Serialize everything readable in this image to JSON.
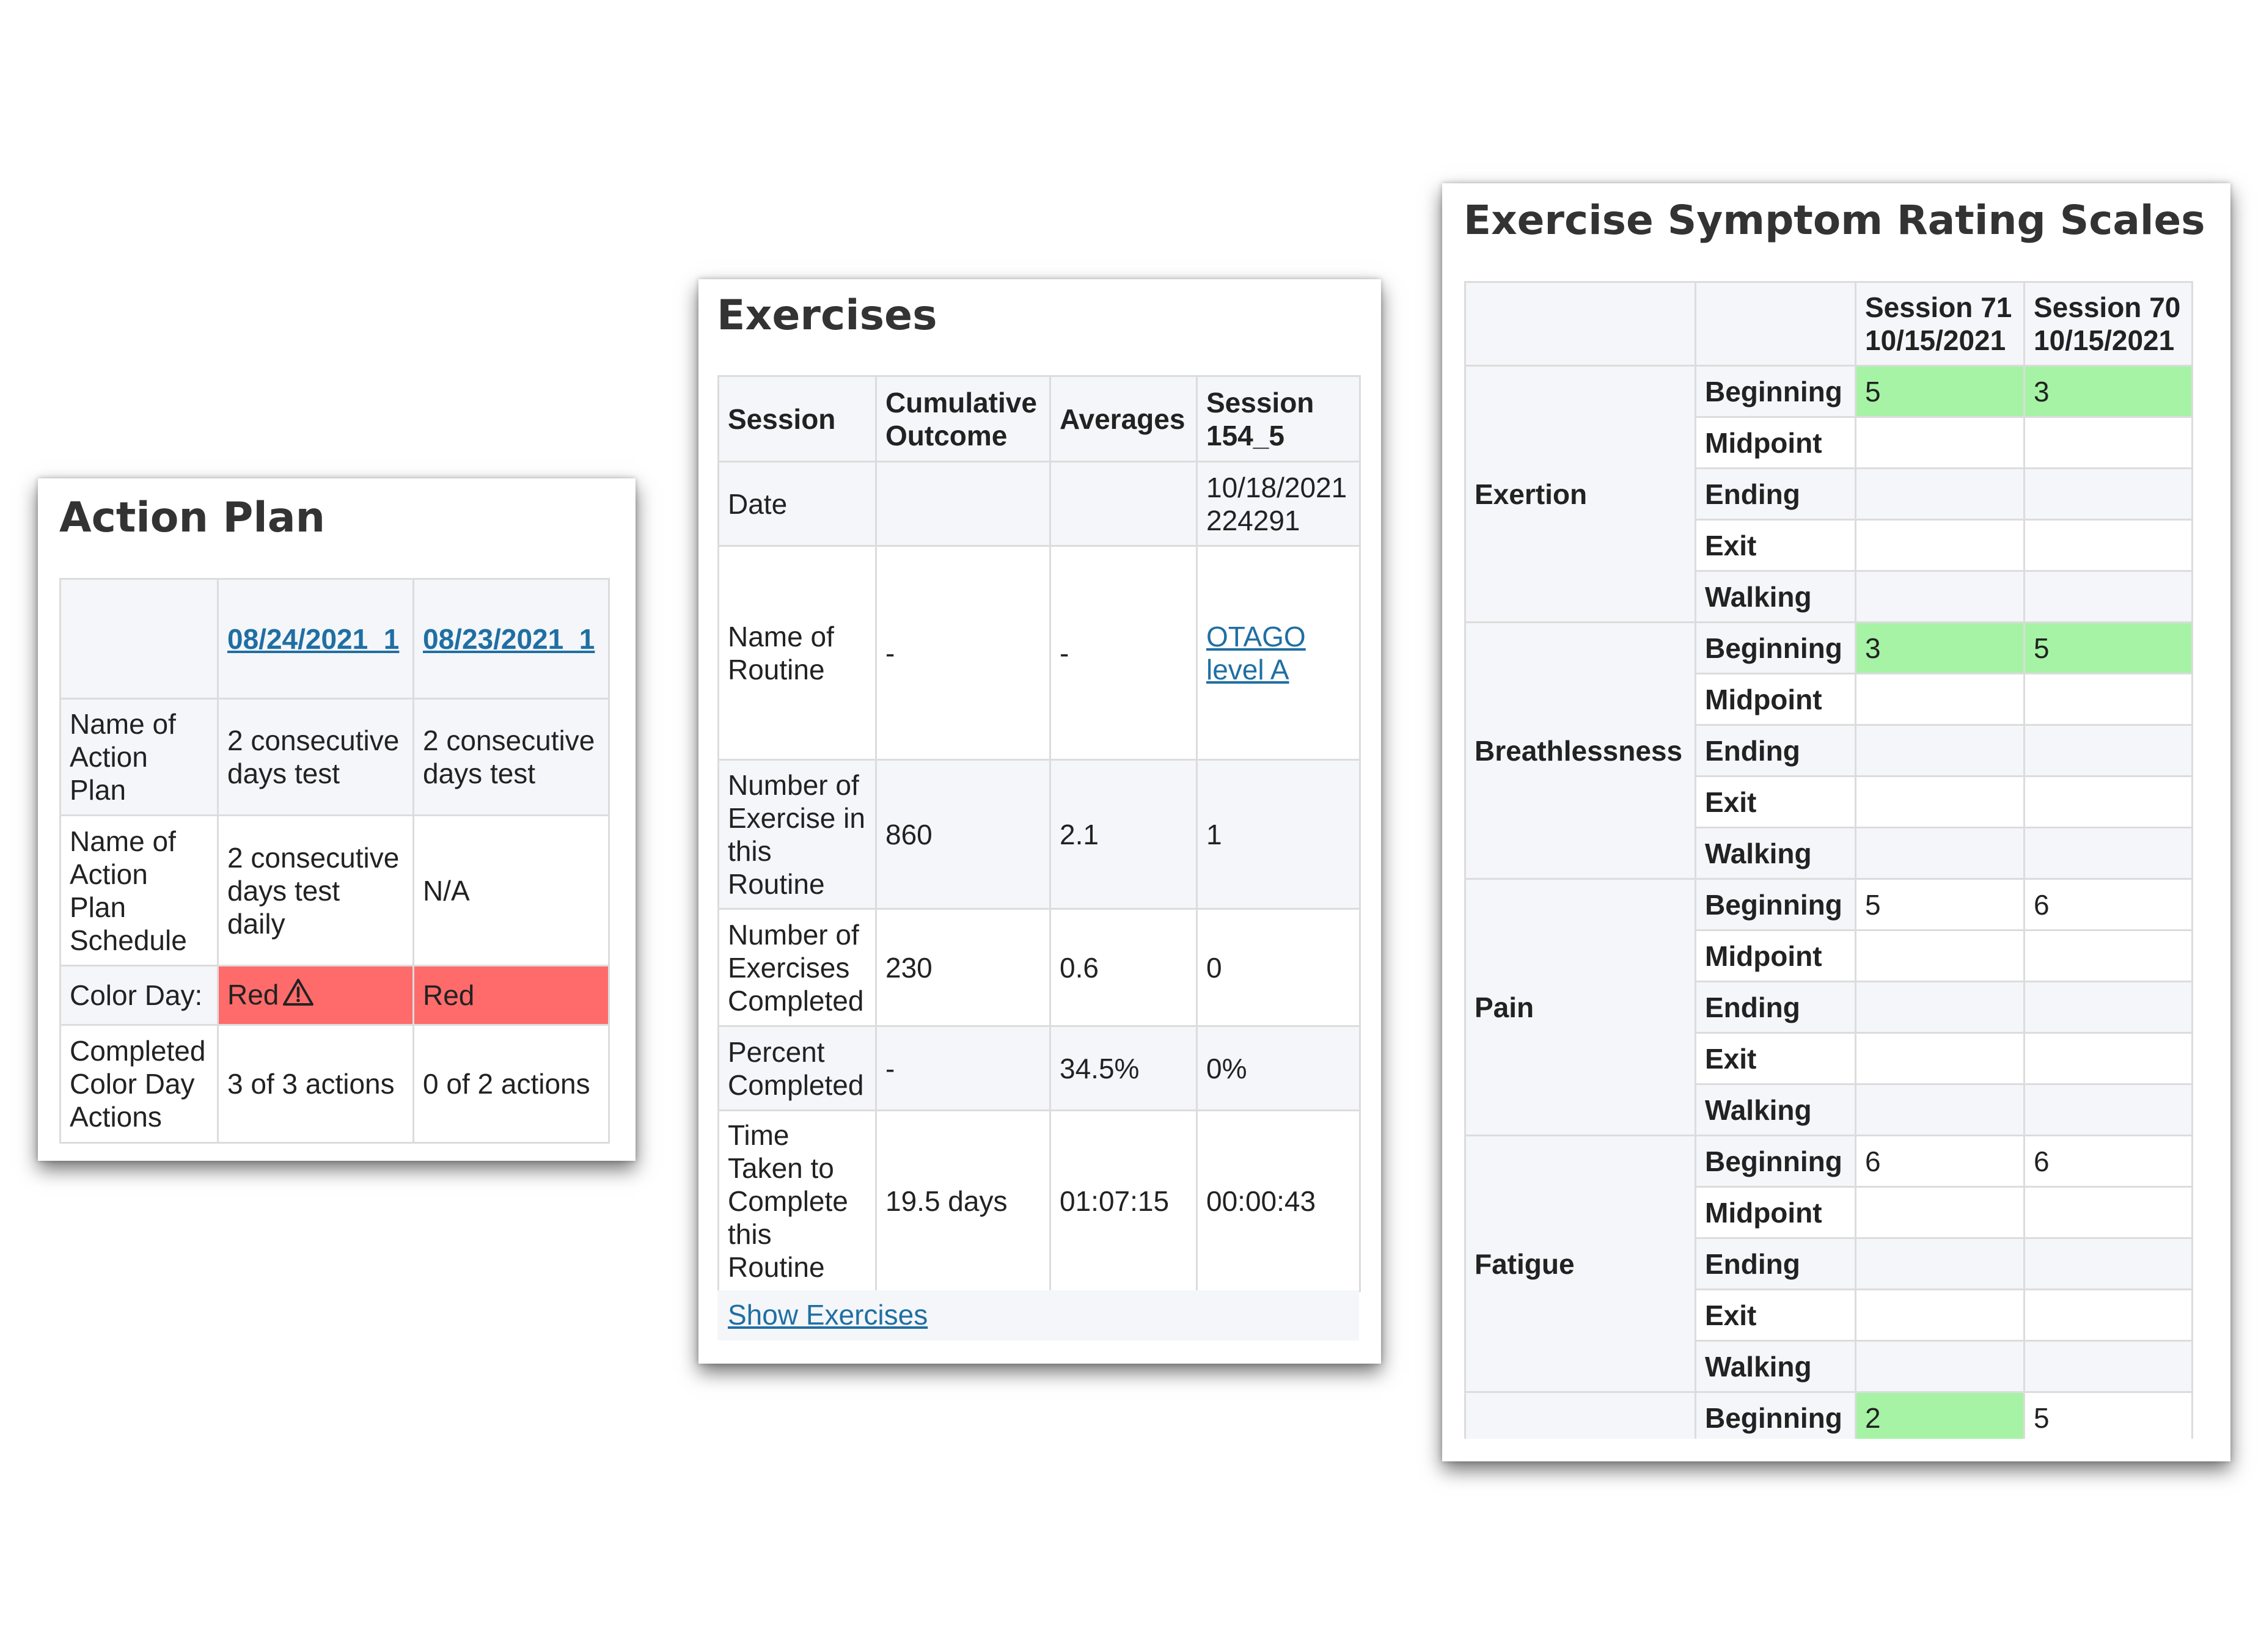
{
  "action_plan": {
    "title": "Action Plan",
    "columns": [
      "08/24/2021_1",
      "08/23/2021_1"
    ],
    "rows": [
      {
        "label": "Name of Action Plan",
        "values": [
          "2 consecutive days test",
          "2 consecutive days test"
        ]
      },
      {
        "label": "Name of Action Plan Schedule",
        "values": [
          "2 consecutive days test daily",
          "N/A"
        ]
      },
      {
        "label": "Color Day:",
        "values": [
          "Red",
          "Red"
        ]
      },
      {
        "label": "Completed Color Day Actions",
        "values": [
          "3 of 3 actions",
          "0 of 2 actions"
        ]
      }
    ],
    "color_day_bg": "#ff6b6b",
    "warning_icon": "warning-triangle-icon"
  },
  "exercises": {
    "title": "Exercises",
    "headers": [
      "Session",
      "Cumulative Outcome",
      "Averages",
      "Session 154_5"
    ],
    "rows": [
      {
        "label": "Date",
        "values": [
          "",
          "",
          "10/18/2021 224291"
        ]
      },
      {
        "label": "Name of Routine",
        "values": [
          "-",
          "-",
          "OTAGO level A"
        ]
      },
      {
        "label": "Number of Exercise in this Routine",
        "values": [
          "860",
          "2.1",
          "1"
        ]
      },
      {
        "label": "Number of Exercises Completed",
        "values": [
          "230",
          "0.6",
          "0"
        ]
      },
      {
        "label": "Percent Completed",
        "values": [
          "-",
          "34.5%",
          "0%"
        ]
      },
      {
        "label": "Time Taken to Complete this Routine",
        "values": [
          "19.5 days",
          "01:07:15",
          "00:00:43"
        ]
      }
    ],
    "show_link": "Show Exercises"
  },
  "symptoms": {
    "title": "Exercise Symptom Rating Scales",
    "sessions": [
      {
        "name": "Session 71",
        "date": "10/15/2021"
      },
      {
        "name": "Session 70",
        "date": "10/15/2021"
      }
    ],
    "phases": [
      "Beginning",
      "Midpoint",
      "Ending",
      "Exit",
      "Walking"
    ],
    "groups": [
      {
        "name": "Exertion",
        "beginning": [
          "5",
          "3"
        ],
        "highlight": true
      },
      {
        "name": "Breathlessness",
        "beginning": [
          "3",
          "5"
        ],
        "highlight": true
      },
      {
        "name": "Pain",
        "beginning": [
          "5",
          "6"
        ],
        "highlight": false
      },
      {
        "name": "Fatigue",
        "beginning": [
          "6",
          "6"
        ],
        "highlight": false
      }
    ],
    "last_row": {
      "phase": "Beginning",
      "values": [
        "2",
        "5"
      ],
      "highlight": [
        true,
        false
      ]
    },
    "highlight_color": "#a6f3a6"
  }
}
